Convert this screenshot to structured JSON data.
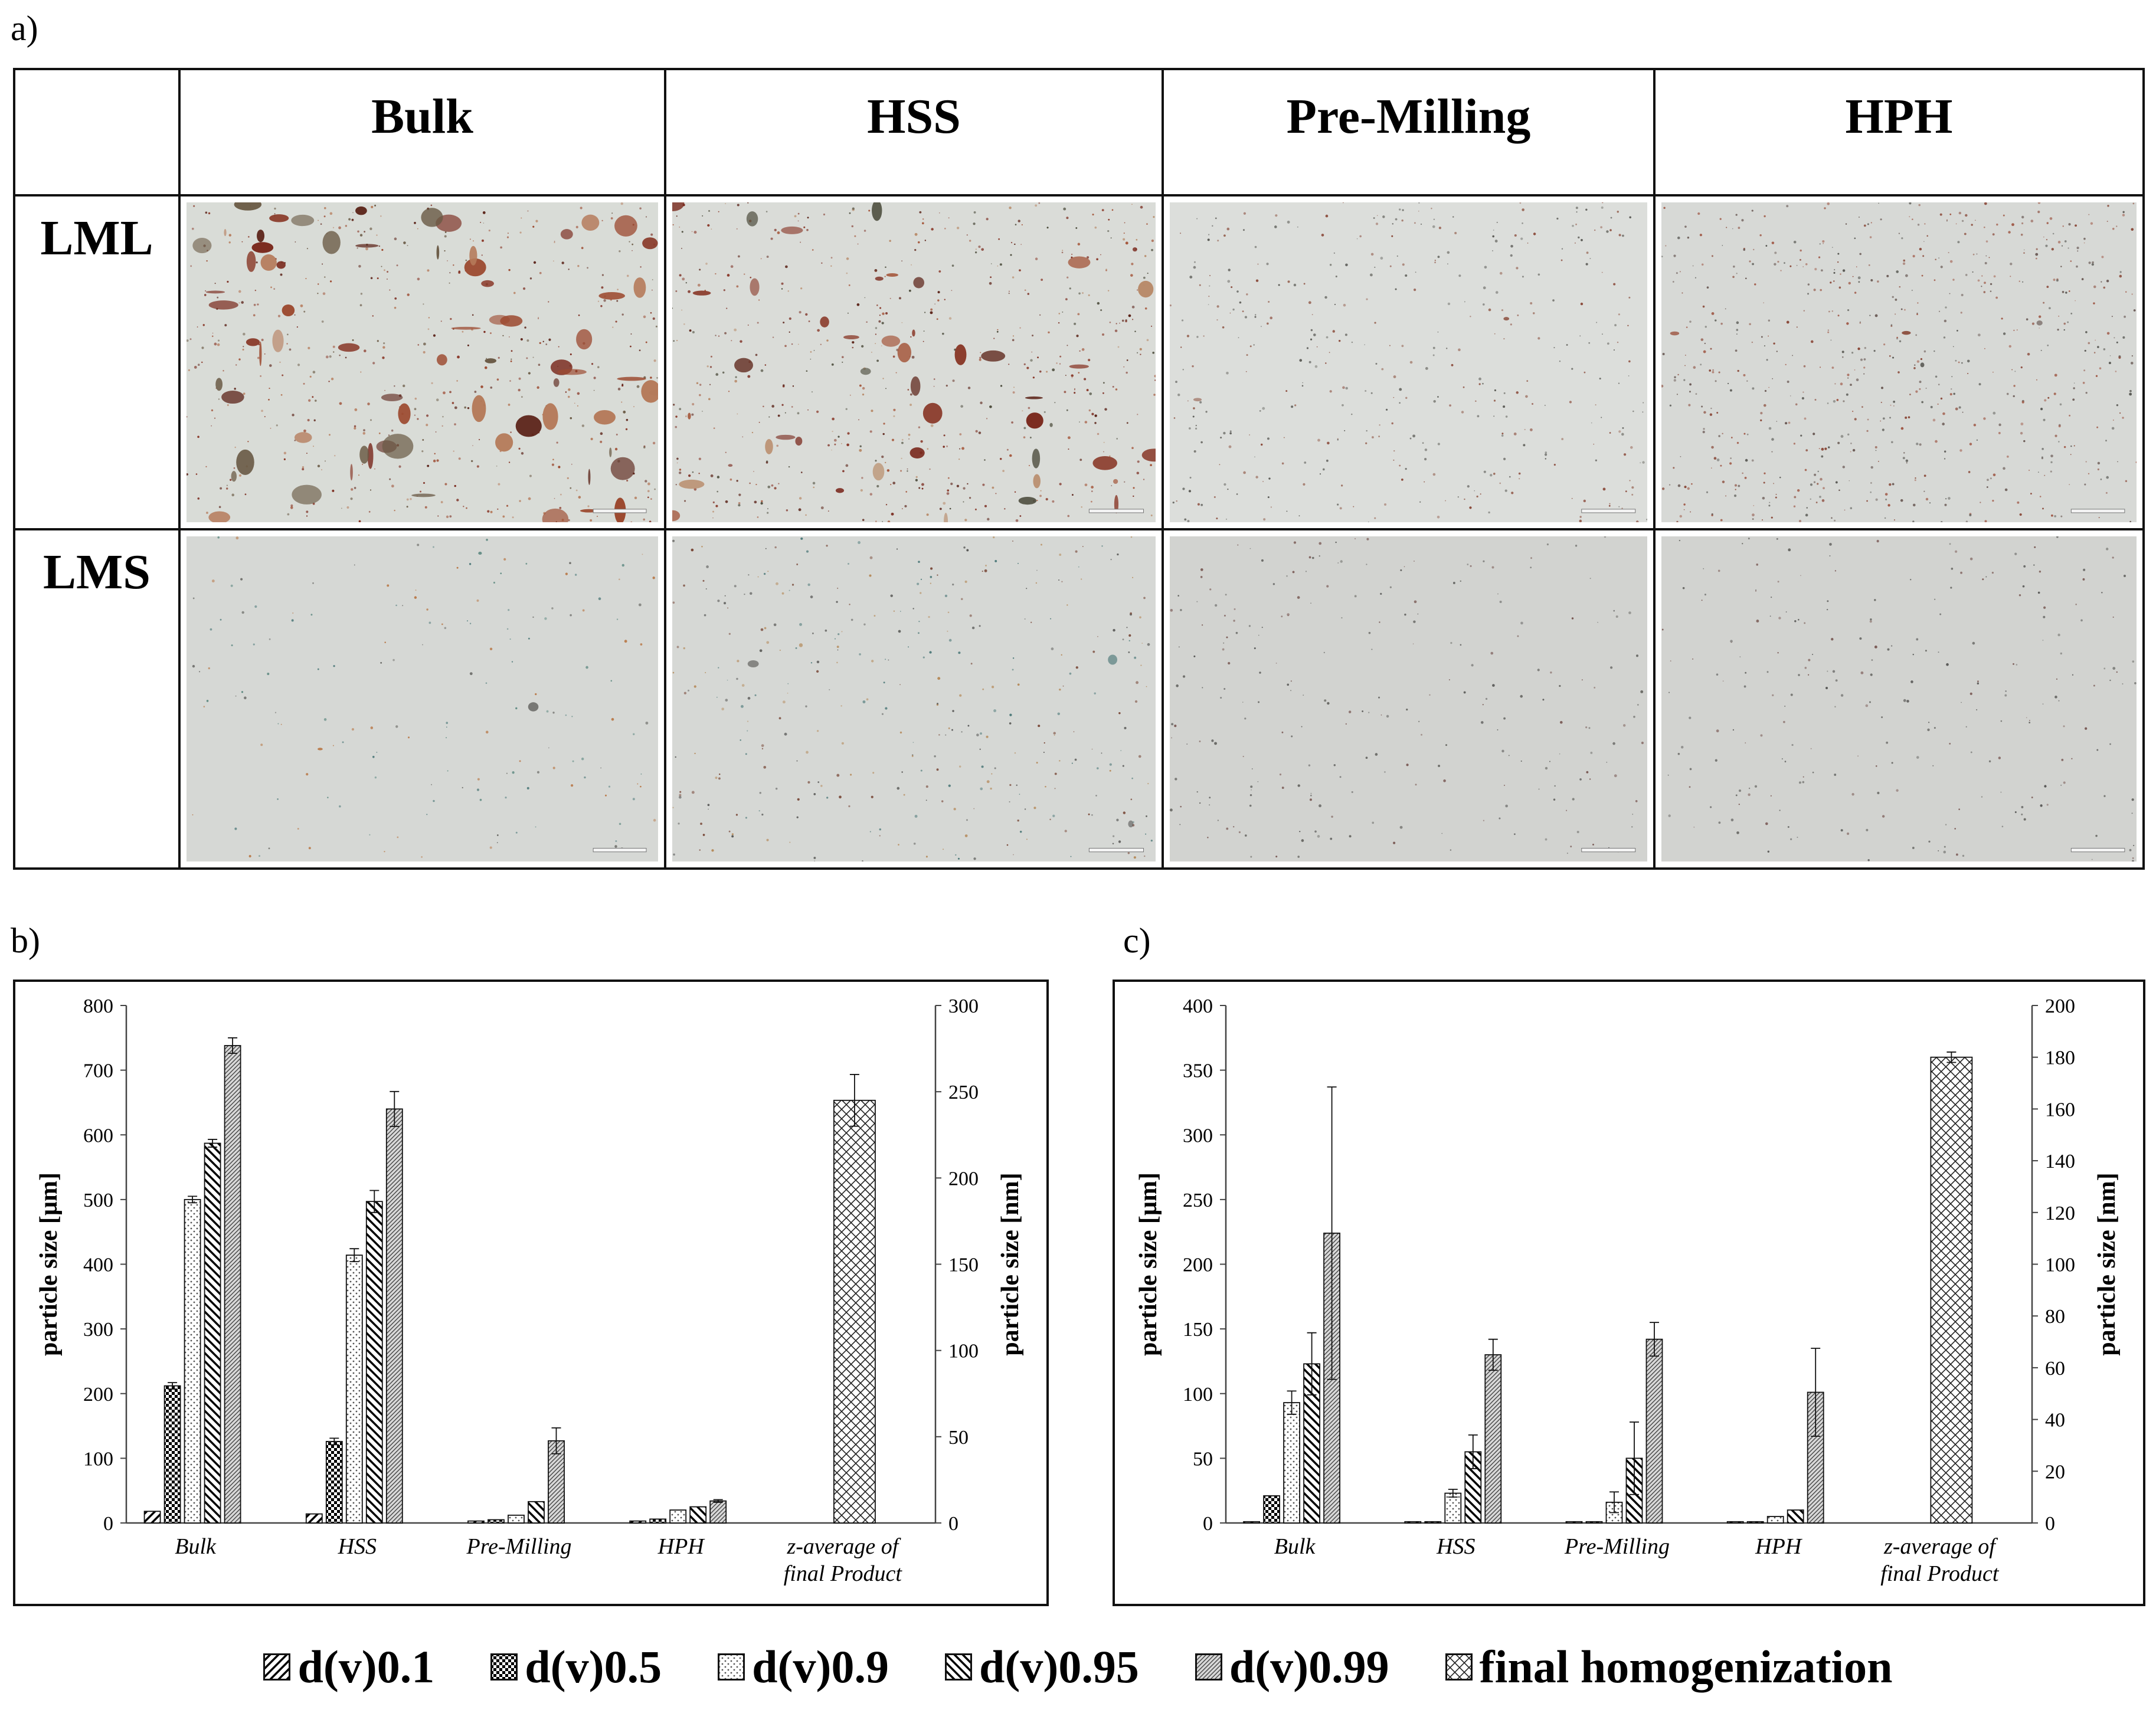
{
  "panels": {
    "a": "a)",
    "b": "b)",
    "c": "c)"
  },
  "micrographs": {
    "columns": [
      "Bulk",
      "HSS",
      "Pre-Milling",
      "HPH"
    ],
    "rows": [
      "LML",
      "LMS"
    ]
  },
  "legend": [
    {
      "label": "d(v)0.1",
      "pattern": "diag-fwd"
    },
    {
      "label": "d(v)0.5",
      "pattern": "checker"
    },
    {
      "label": "d(v)0.9",
      "pattern": "dots"
    },
    {
      "label": "d(v)0.95",
      "pattern": "diag-back"
    },
    {
      "label": "d(v)0.99",
      "pattern": "dense-diag"
    },
    {
      "label": "final homogenization",
      "pattern": "crosshatch"
    }
  ],
  "chart_data": [
    {
      "type": "bar",
      "categories": [
        "Bulk",
        "HSS",
        "Pre-Milling",
        "HPH",
        "z-average of\nfinal Product"
      ],
      "ylabel": "particle size [µm]",
      "ylabel_right": "particle size [nm]",
      "ylim": [
        0,
        800
      ],
      "yticks": [
        0,
        100,
        200,
        300,
        400,
        500,
        600,
        700,
        800
      ],
      "ylim_right": [
        0,
        300
      ],
      "yticks_right": [
        0,
        50,
        100,
        150,
        200,
        250,
        300
      ],
      "series": [
        {
          "name": "d(v)0.1",
          "pattern": "diag-fwd",
          "values": [
            18,
            14,
            3,
            3,
            null
          ],
          "errors": [
            0,
            0,
            0,
            0,
            null
          ]
        },
        {
          "name": "d(v)0.5",
          "pattern": "checker",
          "values": [
            212,
            126,
            5,
            6,
            null
          ],
          "errors": [
            5,
            5,
            0,
            0,
            null
          ]
        },
        {
          "name": "d(v)0.9",
          "pattern": "dots",
          "values": [
            500,
            414,
            12,
            20,
            null
          ],
          "errors": [
            5,
            10,
            0,
            0,
            null
          ]
        },
        {
          "name": "d(v)0.95",
          "pattern": "diag-back",
          "values": [
            587,
            497,
            33,
            25,
            null
          ],
          "errors": [
            6,
            17,
            0,
            0,
            null
          ]
        },
        {
          "name": "d(v)0.99",
          "pattern": "dense-diag",
          "values": [
            738,
            640,
            47,
            34,
            null
          ],
          "errors": [
            12,
            27,
            10,
            2,
            null
          ]
        },
        {
          "name": "final homogenization",
          "pattern": "crosshatch",
          "axis": "right",
          "values": [
            null,
            null,
            null,
            null,
            245
          ],
          "errors": [
            null,
            null,
            null,
            null,
            15
          ]
        }
      ],
      "extra_marks": [
        {
          "category": 2,
          "value": 127,
          "error": 20,
          "pattern": "dense-diag"
        }
      ]
    },
    {
      "type": "bar",
      "categories": [
        "Bulk",
        "HSS",
        "Pre-Milling",
        "HPH",
        "z-average of\nfinal Product"
      ],
      "ylabel": "particle size [µm]",
      "ylabel_right": "particle size [nm]",
      "ylim": [
        0,
        400
      ],
      "yticks": [
        0,
        50,
        100,
        150,
        200,
        250,
        300,
        350,
        400
      ],
      "ylim_right": [
        0,
        200
      ],
      "yticks_right": [
        0,
        20,
        40,
        60,
        80,
        100,
        120,
        140,
        160,
        180,
        200
      ],
      "series": [
        {
          "name": "d(v)0.1",
          "pattern": "diag-fwd",
          "values": [
            1,
            1,
            1,
            1,
            null
          ],
          "errors": [
            0,
            0,
            0,
            0,
            null
          ]
        },
        {
          "name": "d(v)0.5",
          "pattern": "checker",
          "values": [
            21,
            1,
            1,
            1,
            null
          ],
          "errors": [
            0,
            0,
            0,
            0,
            null
          ]
        },
        {
          "name": "d(v)0.9",
          "pattern": "dots",
          "values": [
            93,
            23,
            16,
            5,
            null
          ],
          "errors": [
            9,
            3,
            8,
            0,
            null
          ]
        },
        {
          "name": "d(v)0.95",
          "pattern": "diag-back",
          "values": [
            123,
            55,
            50,
            10,
            null
          ],
          "errors": [
            24,
            13,
            28,
            0,
            null
          ]
        },
        {
          "name": "d(v)0.99",
          "pattern": "dense-diag",
          "values": [
            224,
            130,
            142,
            101,
            null
          ],
          "errors": [
            113,
            12,
            13,
            34,
            null
          ]
        },
        {
          "name": "final homogenization",
          "pattern": "crosshatch",
          "axis": "right",
          "values": [
            null,
            null,
            null,
            null,
            180
          ],
          "errors": [
            null,
            null,
            null,
            null,
            2
          ]
        }
      ]
    }
  ]
}
